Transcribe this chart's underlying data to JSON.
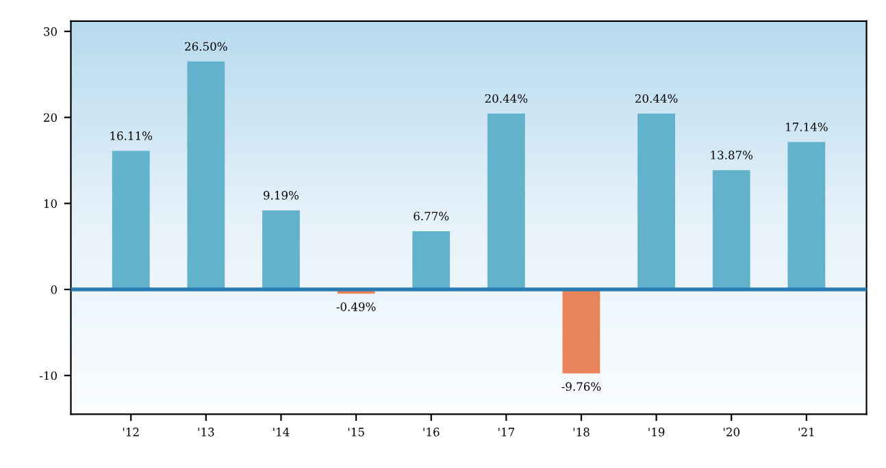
{
  "chart_data": {
    "type": "bar",
    "categories": [
      "'12",
      "'13",
      "'14",
      "'15",
      "'16",
      "'17",
      "'18",
      "'19",
      "'20",
      "'21"
    ],
    "values": [
      16.11,
      26.5,
      9.19,
      -0.49,
      6.77,
      20.44,
      -9.76,
      20.44,
      13.87,
      17.14
    ],
    "value_labels": [
      "16.11%",
      "26.50%",
      "9.19%",
      "-0.49%",
      "6.77%",
      "20.44%",
      "-9.76%",
      "20.44%",
      "13.87%",
      "17.14%"
    ],
    "colors": [
      "#62b2cc",
      "#62b2cc",
      "#62b2cc",
      "#e8845a",
      "#62b2cc",
      "#62b2cc",
      "#e8845a",
      "#62b2cc",
      "#62b2cc",
      "#62b2cc"
    ],
    "ylim": [
      -14.5,
      31.2
    ],
    "yticks": [
      -10,
      0,
      10,
      20,
      30
    ],
    "ref_lines": [
      {
        "axis": "y",
        "value": 0,
        "color": "#2b7bb5"
      }
    ],
    "grid": false,
    "legend": false
  }
}
